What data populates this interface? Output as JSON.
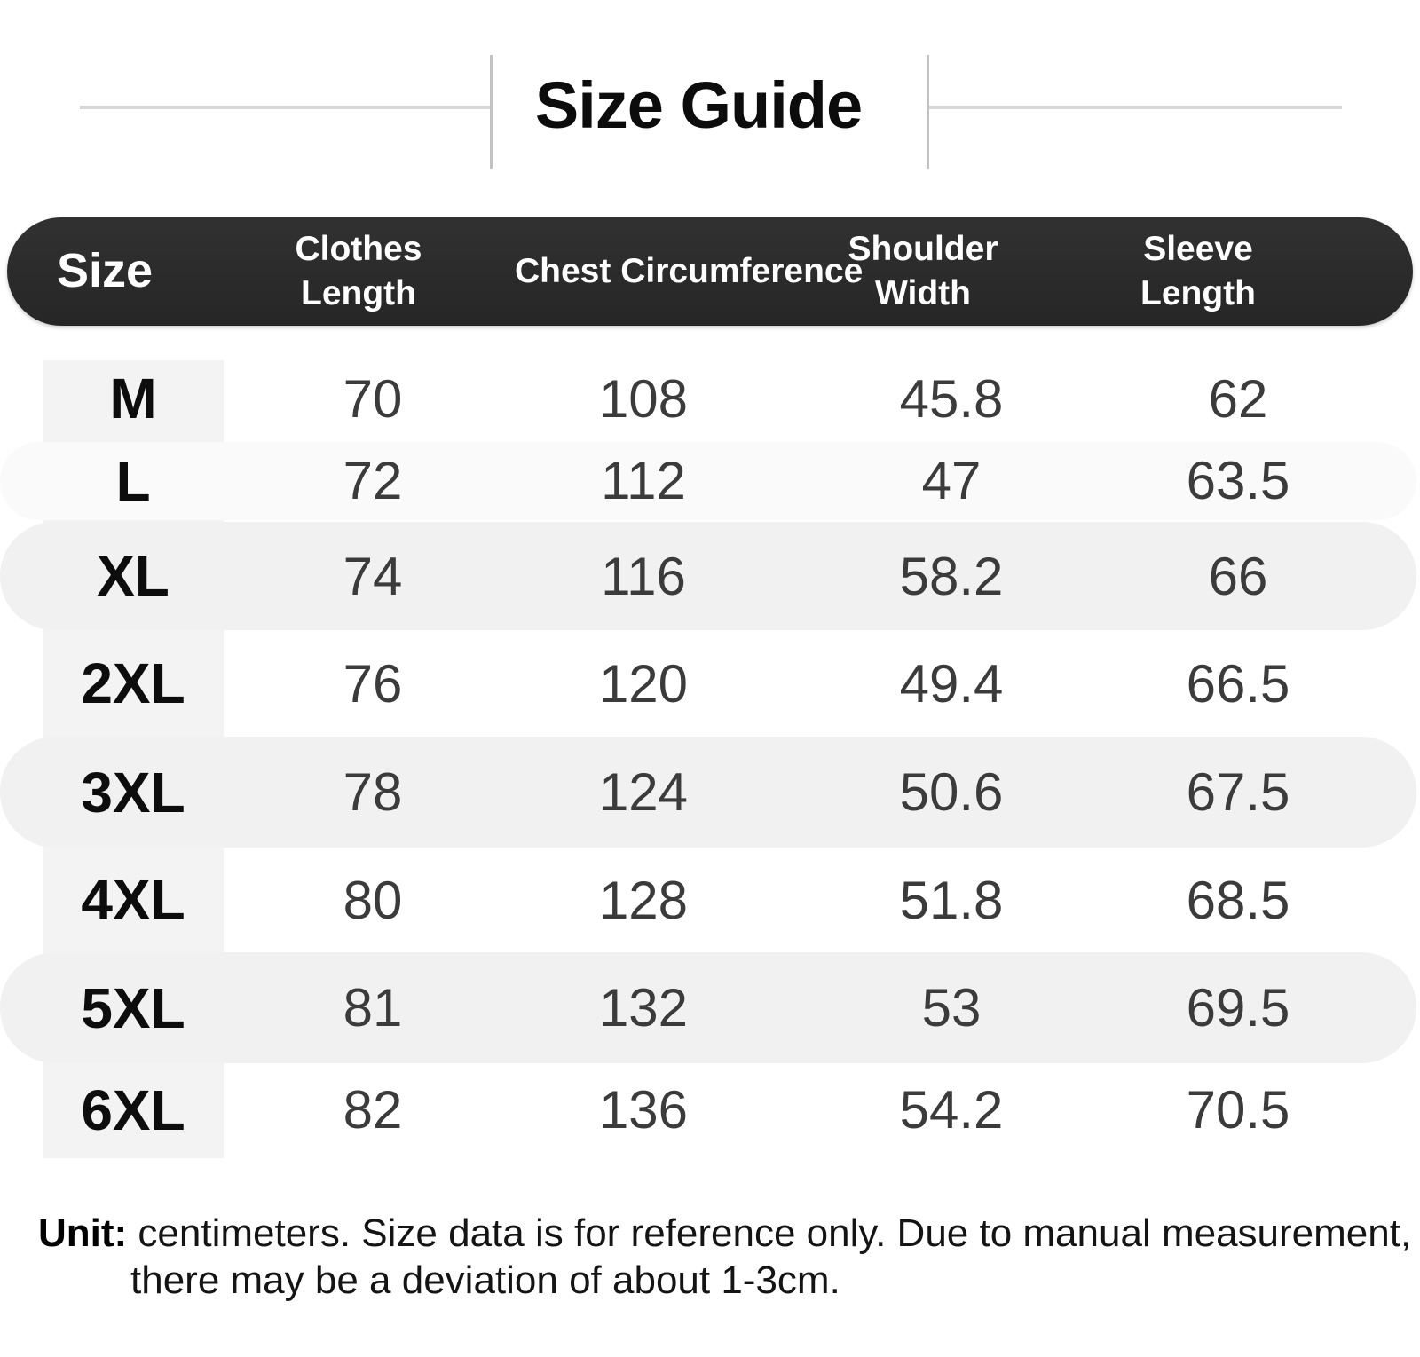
{
  "title": "Size Guide",
  "table": {
    "headers": [
      "Size",
      "Clothes\nLength",
      "Chest Circumference",
      "Shoulder\nWidth",
      "Sleeve\nLength"
    ],
    "rows": [
      {
        "size": "M",
        "values": [
          "70",
          "108",
          "45.8",
          "62"
        ]
      },
      {
        "size": "L",
        "values": [
          "72",
          "112",
          "47",
          "63.5"
        ]
      },
      {
        "size": "XL",
        "values": [
          "74",
          "116",
          "58.2",
          "66"
        ]
      },
      {
        "size": "2XL",
        "values": [
          "76",
          "120",
          "49.4",
          "66.5"
        ]
      },
      {
        "size": "3XL",
        "values": [
          "78",
          "124",
          "50.6",
          "67.5"
        ]
      },
      {
        "size": "4XL",
        "values": [
          "80",
          "128",
          "51.8",
          "68.5"
        ]
      },
      {
        "size": "5XL",
        "values": [
          "81",
          "132",
          "53",
          "69.5"
        ]
      },
      {
        "size": "6XL",
        "values": [
          "82",
          "136",
          "54.2",
          "70.5"
        ]
      }
    ]
  },
  "footer": {
    "unit_label": "Unit:",
    "note": "centimeters. Size data is for reference only. Due to manual measurement,\nthere may be a deviation of about 1-3cm."
  },
  "colors": {
    "header_bar": "#2b2b2b",
    "header_text": "#ffffff",
    "row_band": "#f1f1f1",
    "side_strip": "#f3f3f3",
    "value_text": "#3b3b3b"
  },
  "chart_data": {
    "type": "table",
    "title": "Size Guide",
    "unit": "centimeters",
    "columns": [
      "Size",
      "Clothes Length",
      "Chest Circumference",
      "Shoulder Width",
      "Sleeve Length"
    ],
    "rows": [
      [
        "M",
        70,
        108,
        45.8,
        62
      ],
      [
        "L",
        72,
        112,
        47,
        63.5
      ],
      [
        "XL",
        74,
        116,
        58.2,
        66
      ],
      [
        "2XL",
        76,
        120,
        49.4,
        66.5
      ],
      [
        "3XL",
        78,
        124,
        50.6,
        67.5
      ],
      [
        "4XL",
        80,
        128,
        51.8,
        68.5
      ],
      [
        "5XL",
        81,
        132,
        53,
        69.5
      ],
      [
        "6XL",
        82,
        136,
        54.2,
        70.5
      ]
    ]
  }
}
